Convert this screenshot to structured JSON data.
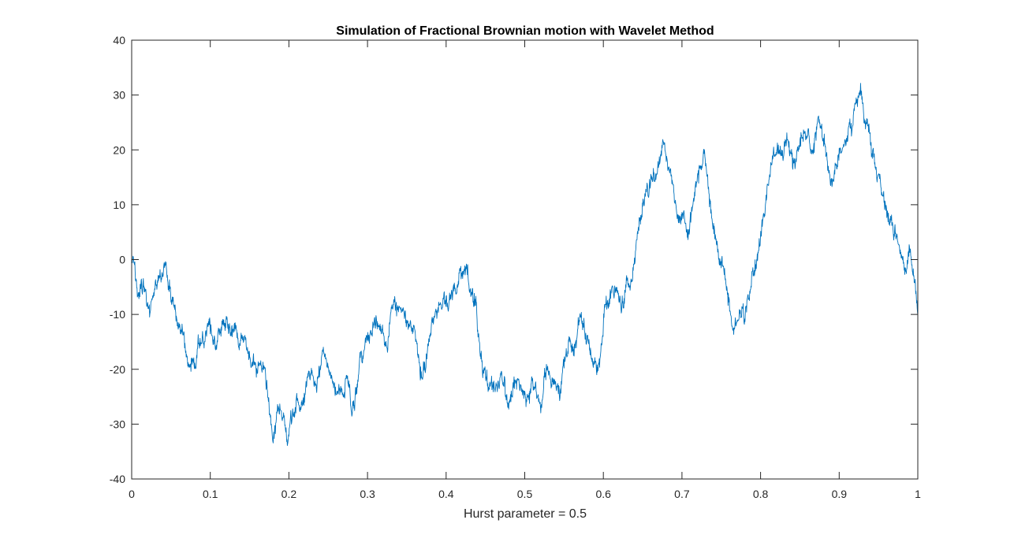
{
  "chart_data": {
    "type": "line",
    "title": "Simulation of Fractional Brownian motion with Wavelet Method",
    "xlabel": "Hurst parameter = 0.5",
    "ylabel": "",
    "xlim": [
      0,
      1
    ],
    "ylim": [
      -40,
      40
    ],
    "xticks": [
      0,
      0.1,
      0.2,
      0.3,
      0.4,
      0.5,
      0.6,
      0.7,
      0.8,
      0.9,
      1
    ],
    "xtick_labels": [
      "0",
      "0.1",
      "0.2",
      "0.3",
      "0.4",
      "0.5",
      "0.6",
      "0.7",
      "0.8",
      "0.9",
      "1"
    ],
    "yticks": [
      -40,
      -30,
      -20,
      -10,
      0,
      10,
      20,
      30,
      40
    ],
    "ytick_labels": [
      "-40",
      "-30",
      "-20",
      "-10",
      "0",
      "10",
      "20",
      "30",
      "40"
    ],
    "grid": false,
    "box": true,
    "series": [
      {
        "color": "#0072BD",
        "x": [
          0,
          0.01,
          0.02,
          0.03,
          0.043,
          0.05,
          0.06,
          0.073,
          0.085,
          0.1,
          0.11,
          0.12,
          0.14,
          0.155,
          0.165,
          0.178,
          0.19,
          0.2,
          0.21,
          0.225,
          0.235,
          0.245,
          0.26,
          0.275,
          0.28,
          0.29,
          0.3,
          0.31,
          0.325,
          0.335,
          0.345,
          0.36,
          0.37,
          0.385,
          0.4,
          0.41,
          0.425,
          0.435,
          0.445,
          0.455,
          0.47,
          0.48,
          0.49,
          0.5,
          0.51,
          0.52,
          0.53,
          0.54,
          0.55,
          0.56,
          0.57,
          0.58,
          0.59,
          0.6,
          0.61,
          0.62,
          0.63,
          0.64,
          0.65,
          0.66,
          0.67,
          0.678,
          0.69,
          0.7,
          0.71,
          0.72,
          0.728,
          0.735,
          0.745,
          0.755,
          0.765,
          0.775,
          0.785,
          0.795,
          0.805,
          0.815,
          0.825,
          0.835,
          0.845,
          0.855,
          0.865,
          0.875,
          0.885,
          0.89,
          0.9,
          0.91,
          0.92,
          0.928,
          0.935,
          0.945,
          0.955,
          0.965,
          0.975,
          0.98,
          0.985,
          0.995,
          1.0
        ],
        "y": [
          0,
          -6,
          -8,
          -4,
          0,
          -8,
          -12,
          -19,
          -15,
          -12,
          -14,
          -11,
          -14,
          -18,
          -20,
          -30,
          -27,
          -32,
          -25,
          -20,
          -24,
          -17,
          -24,
          -22,
          -28,
          -18,
          -14,
          -11,
          -16,
          -8,
          -9,
          -13,
          -22,
          -10,
          -7,
          -5,
          -2,
          -8,
          -18,
          -24,
          -21,
          -26,
          -22,
          -24,
          -22,
          -27,
          -20,
          -23,
          -19,
          -16,
          -11,
          -14,
          -19,
          -12,
          -6,
          -8,
          -4,
          0,
          10,
          14,
          17,
          21,
          12,
          8,
          6,
          15,
          20,
          10,
          3,
          -3,
          -13,
          -10,
          -7,
          0,
          8,
          18,
          20,
          22,
          18,
          23,
          20,
          25,
          18,
          14,
          20,
          22,
          28,
          31,
          26,
          18,
          12,
          7,
          3,
          0,
          -2,
          -3,
          -10
        ]
      }
    ]
  }
}
